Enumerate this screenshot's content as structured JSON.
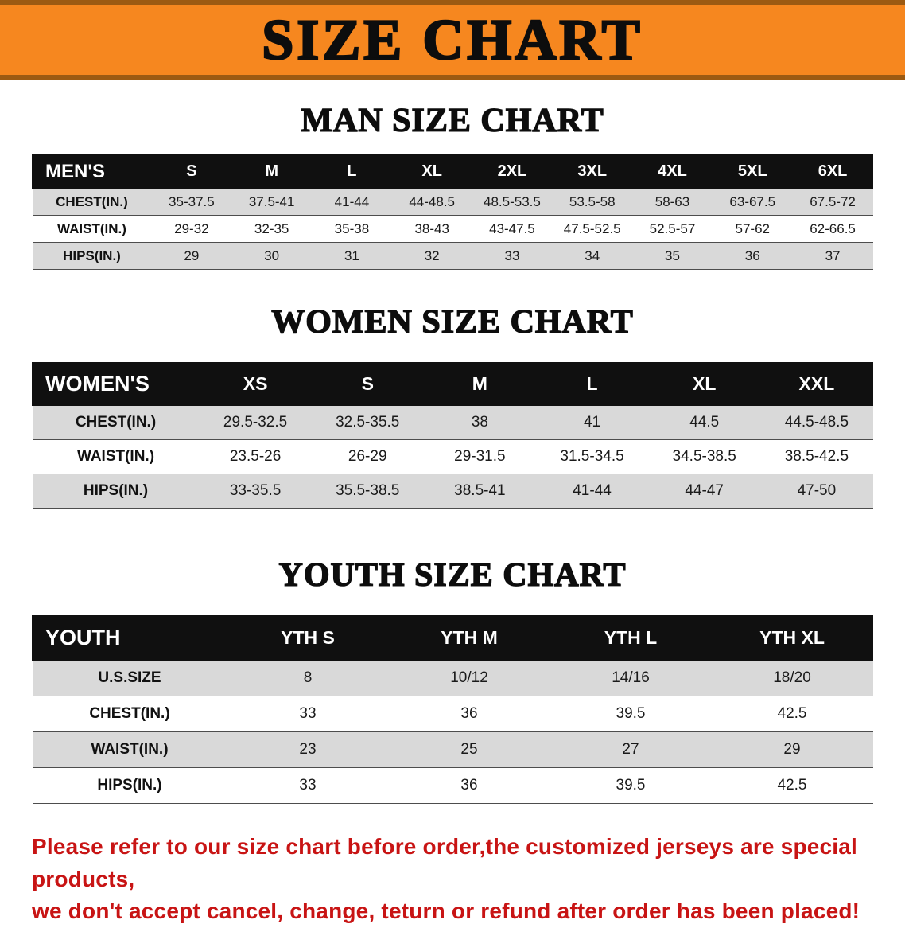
{
  "banner": {
    "title": "SIZE CHART"
  },
  "colors": {
    "banner_orange": "#f6871f",
    "banner_edge": "#9c5a12",
    "table_header_black": "#101010",
    "row_shade_gray": "#d9d9d9",
    "footer_red": "#c81414"
  },
  "sections": [
    {
      "heading": "MAN SIZE CHART",
      "table": {
        "label": "MEN'S",
        "sizes": [
          "S",
          "M",
          "L",
          "XL",
          "2XL",
          "3XL",
          "4XL",
          "5XL",
          "6XL"
        ],
        "rows": [
          {
            "label": "CHEST(IN.)",
            "values": [
              "35-37.5",
              "37.5-41",
              "41-44",
              "44-48.5",
              "48.5-53.5",
              "53.5-58",
              "58-63",
              "63-67.5",
              "67.5-72"
            ]
          },
          {
            "label": "WAIST(IN.)",
            "values": [
              "29-32",
              "32-35",
              "35-38",
              "38-43",
              "43-47.5",
              "47.5-52.5",
              "52.5-57",
              "57-62",
              "62-66.5"
            ]
          },
          {
            "label": "HIPS(IN.)",
            "values": [
              "29",
              "30",
              "31",
              "32",
              "33",
              "34",
              "35",
              "36",
              "37"
            ]
          }
        ]
      }
    },
    {
      "heading": "WOMEN SIZE CHART",
      "table": {
        "label": "WOMEN'S",
        "sizes": [
          "XS",
          "S",
          "M",
          "L",
          "XL",
          "XXL"
        ],
        "rows": [
          {
            "label": "CHEST(IN.)",
            "values": [
              "29.5-32.5",
              "32.5-35.5",
              "38",
              "41",
              "44.5",
              "44.5-48.5"
            ]
          },
          {
            "label": "WAIST(IN.)",
            "values": [
              "23.5-26",
              "26-29",
              "29-31.5",
              "31.5-34.5",
              "34.5-38.5",
              "38.5-42.5"
            ]
          },
          {
            "label": "HIPS(IN.)",
            "values": [
              "33-35.5",
              "35.5-38.5",
              "38.5-41",
              "41-44",
              "44-47",
              "47-50"
            ]
          }
        ]
      }
    },
    {
      "heading": "YOUTH SIZE CHART",
      "table": {
        "label": "YOUTH",
        "sizes": [
          "YTH S",
          "YTH M",
          "YTH L",
          "YTH XL"
        ],
        "rows": [
          {
            "label": "U.S.SIZE",
            "values": [
              "8",
              "10/12",
              "14/16",
              "18/20"
            ]
          },
          {
            "label": "CHEST(IN.)",
            "values": [
              "33",
              "36",
              "39.5",
              "42.5"
            ]
          },
          {
            "label": "WAIST(IN.)",
            "values": [
              "23",
              "25",
              "27",
              "29"
            ]
          },
          {
            "label": "HIPS(IN.)",
            "values": [
              "33",
              "36",
              "39.5",
              "42.5"
            ]
          }
        ]
      }
    }
  ],
  "footer": {
    "line1": "Please refer to our size chart before order,the customized jerseys are special products,",
    "line2": "we don't accept cancel, change, teturn or refund after order has been placed!"
  }
}
